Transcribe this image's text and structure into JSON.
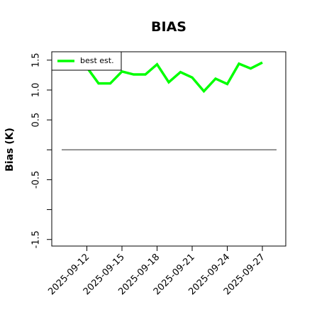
{
  "chart_data": {
    "type": "line",
    "title": "BIAS",
    "y_label": "Bias (K)",
    "x": [
      "2025-09-12",
      "2025-09-13",
      "2025-09-14",
      "2025-09-15",
      "2025-09-16",
      "2025-09-17",
      "2025-09-18",
      "2025-09-19",
      "2025-09-20",
      "2025-09-21",
      "2025-09-22",
      "2025-09-23",
      "2025-09-24",
      "2025-09-25",
      "2025-09-26",
      "2025-09-27"
    ],
    "series": [
      {
        "name": "best est.",
        "color": "#00ff00",
        "values": [
          1.38,
          1.11,
          1.11,
          1.31,
          1.26,
          1.26,
          1.43,
          1.13,
          1.3,
          1.21,
          0.98,
          1.19,
          1.1,
          1.44,
          1.36,
          1.46
        ]
      }
    ],
    "xlim": [
      "2025-09-09",
      "2025-09-29"
    ],
    "xticks": [
      "2025-09-12",
      "2025-09-15",
      "2025-09-18",
      "2025-09-21",
      "2025-09-24",
      "2025-09-27"
    ],
    "ylim": [
      -1.61,
      1.64
    ],
    "yticks": [
      -1.5,
      {
        "value": -1,
        "label": null
      },
      -0.5,
      {
        "value": 0,
        "label": null
      },
      0.5,
      {
        "value": 1,
        "label": "1.0"
      },
      1.5
    ],
    "hline": 0,
    "hline_color": "#555555",
    "legend": "upper left",
    "grid": false
  }
}
